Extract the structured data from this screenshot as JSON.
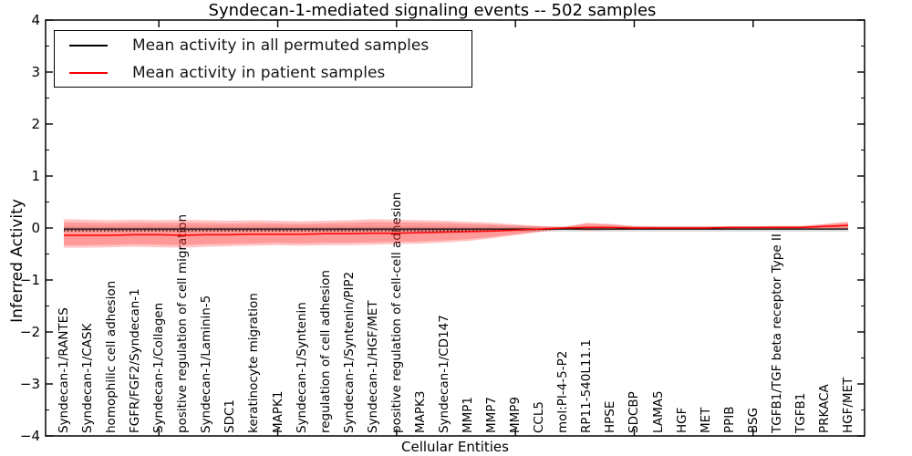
{
  "chart_data": {
    "type": "line",
    "title": "Syndecan-1-mediated signaling events -- 502 samples",
    "xlabel": "Cellular Entities",
    "ylabel": "Inferred Activity",
    "ylim": [
      -4,
      4
    ],
    "grid": false,
    "legend_position": "upper left",
    "legend": [
      {
        "label": "Mean activity in all permuted samples",
        "color": "#000000"
      },
      {
        "label": "Mean activity in patient samples",
        "color": "#ff0000"
      }
    ],
    "categories": [
      "Syndecan-1/RANTES",
      "Syndecan-1/CASK",
      "homophilic cell adhesion",
      "FGFR/FGF2/Syndecan-1",
      "Syndecan-1/Collagen",
      "positive regulation of cell migration",
      "Syndecan-1/Laminin-5",
      "SDC1",
      "keratinocyte migration",
      "MAPK1",
      "Syndecan-1/Syntenin",
      "regulation of cell adhesion",
      "Syndecan-1/Syntenin/PIP2",
      "Syndecan-1/HGF/MET",
      "positive regulation of cell-cell adhesion",
      "MAPK3",
      "Syndecan-1/CD147",
      "MMP1",
      "MMP7",
      "MMP9",
      "CCL5",
      "mol:PI-4-5-P2",
      "RP11-540L11.1",
      "HPSE",
      "SDCBP",
      "LAMA5",
      "HGF",
      "MET",
      "PPIB",
      "BSG",
      "TGFB1/TGF beta receptor Type II",
      "TGFB1",
      "PRKACA",
      "HGF/MET"
    ],
    "yticks": {
      "values": [
        4,
        3,
        2,
        1,
        0,
        -1,
        -2,
        -3,
        -4
      ],
      "labels": [
        "4",
        "3",
        "2",
        "1",
        "0",
        "−1",
        "−2",
        "−3",
        "−4"
      ],
      "minor_step": 0.5
    },
    "x_major_tick_indices": [
      4,
      9,
      14,
      19,
      24,
      29
    ],
    "series": [
      {
        "name": "Mean activity in all permuted samples",
        "color": "#000000",
        "style": "solid",
        "values": [
          -0.02,
          -0.02,
          -0.02,
          -0.02,
          -0.02,
          -0.02,
          -0.02,
          -0.02,
          -0.02,
          -0.02,
          -0.02,
          -0.02,
          -0.02,
          -0.02,
          -0.02,
          -0.02,
          -0.02,
          -0.02,
          -0.02,
          -0.02,
          -0.02,
          -0.02,
          -0.02,
          -0.02,
          -0.02,
          -0.02,
          -0.02,
          -0.02,
          -0.02,
          -0.02,
          -0.02,
          -0.02,
          -0.02,
          -0.02
        ]
      },
      {
        "name": "permuted reference (dotted)",
        "color": "#000000",
        "style": "dotted",
        "values": [
          -0.05,
          -0.05,
          -0.05,
          -0.05,
          -0.05,
          -0.05,
          -0.05,
          -0.05,
          -0.05,
          -0.05,
          -0.05,
          -0.05,
          -0.05,
          -0.05,
          -0.05,
          -0.05,
          -0.05,
          -0.05,
          -0.05,
          -0.04,
          -0.03,
          -0.02,
          -0.02,
          -0.02,
          -0.02,
          -0.02,
          -0.02,
          -0.02,
          -0.02,
          -0.02,
          -0.02,
          -0.02,
          -0.02,
          -0.02
        ]
      },
      {
        "name": "Mean activity in patient samples",
        "color": "#ff0000",
        "style": "solid",
        "values": [
          -0.14,
          -0.14,
          -0.14,
          -0.13,
          -0.13,
          -0.14,
          -0.13,
          -0.13,
          -0.12,
          -0.12,
          -0.12,
          -0.11,
          -0.11,
          -0.1,
          -0.1,
          -0.09,
          -0.08,
          -0.07,
          -0.06,
          -0.04,
          -0.02,
          0.0,
          0.01,
          0.01,
          0.0,
          0.0,
          0.0,
          0.0,
          0.01,
          0.01,
          0.01,
          0.01,
          0.03,
          0.05
        ]
      }
    ],
    "bands": {
      "patient_band": {
        "color": "#ff2828",
        "opacity": 0.27,
        "inner_scale": 0.8,
        "top": [
          0.17,
          0.16,
          0.15,
          0.16,
          0.15,
          0.16,
          0.15,
          0.14,
          0.15,
          0.14,
          0.13,
          0.14,
          0.15,
          0.17,
          0.16,
          0.15,
          0.14,
          0.12,
          0.1,
          0.07,
          0.04,
          0.02,
          0.1,
          0.08,
          0.04,
          0.03,
          0.03,
          0.03,
          0.03,
          0.03,
          0.04,
          0.04,
          0.08,
          0.12
        ],
        "bottom": [
          -0.38,
          -0.38,
          -0.37,
          -0.36,
          -0.37,
          -0.38,
          -0.36,
          -0.35,
          -0.34,
          -0.33,
          -0.34,
          -0.33,
          -0.33,
          -0.32,
          -0.31,
          -0.3,
          -0.28,
          -0.25,
          -0.2,
          -0.14,
          -0.08,
          -0.02,
          -0.05,
          -0.04,
          -0.03,
          -0.03,
          -0.02,
          -0.02,
          -0.02,
          -0.02,
          -0.02,
          -0.02,
          -0.01,
          -0.02
        ]
      },
      "permuted_band": {
        "color": "#787878",
        "opacity": 0.25,
        "center": -0.02,
        "halfwidth": 0.05
      }
    }
  }
}
